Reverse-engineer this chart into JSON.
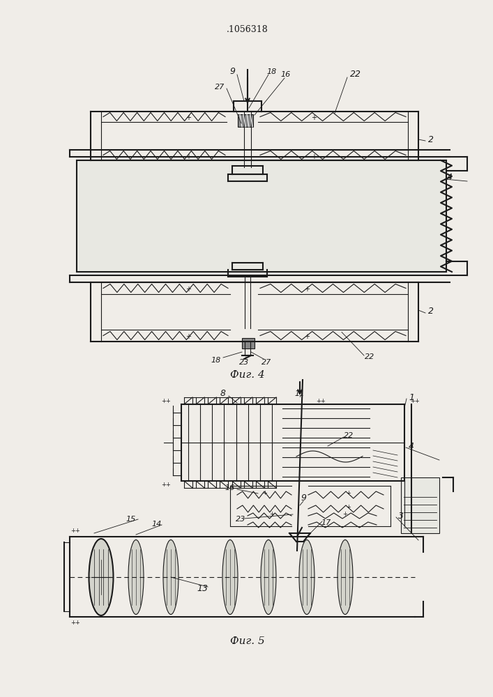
{
  "title": ".1056318",
  "fig4_label": "Фиг. 4",
  "fig5_label": "Фиг. 5",
  "bg_color": "#f0ede8",
  "line_color": "#1a1a1a"
}
